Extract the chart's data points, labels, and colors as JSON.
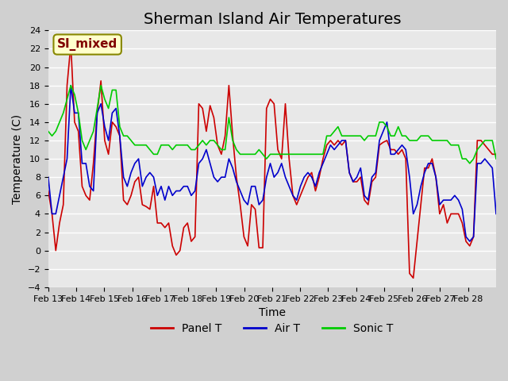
{
  "title": "Sherman Island Air Temperatures",
  "xlabel": "Time",
  "ylabel": "Temperature (C)",
  "ylim": [
    -4,
    24
  ],
  "yticks": [
    -4,
    -2,
    0,
    2,
    4,
    6,
    8,
    10,
    12,
    14,
    16,
    18,
    20,
    22,
    24
  ],
  "xlabels": [
    "Feb 13",
    "Feb 14",
    "Feb 15",
    "Feb 16",
    "Feb 17",
    "Feb 18",
    "Feb 19",
    "Feb 20",
    "Feb 21",
    "Feb 22",
    "Feb 23",
    "Feb 24",
    "Feb 25",
    "Feb 26",
    "Feb 27",
    "Feb 28"
  ],
  "n_days": 16,
  "bg_color": "#e8e8e8",
  "grid_color": "#ffffff",
  "panel_t_color": "#cc0000",
  "air_t_color": "#0000cc",
  "sonic_t_color": "#00cc00",
  "legend_label_color": "#800000",
  "annotation_text": "SI_mixed",
  "annotation_bg": "#ffffcc",
  "annotation_border": "#888800",
  "title_fontsize": 14,
  "axis_fontsize": 10,
  "tick_fontsize": 8,
  "legend_fontsize": 10,
  "linewidth": 1.2,
  "panel_t": [
    6.5,
    4.0,
    0.0,
    3.0,
    5.0,
    18.0,
    22.5,
    14.0,
    13.0,
    7.0,
    6.0,
    5.5,
    9.5,
    15.0,
    18.5,
    12.0,
    10.5,
    14.0,
    13.5,
    12.5,
    5.5,
    5.0,
    6.0,
    7.5,
    8.0,
    5.0,
    4.8,
    4.5,
    7.0,
    3.0,
    3.0,
    2.5,
    3.0,
    0.5,
    -0.5,
    0.0,
    2.5,
    3.0,
    1.0,
    1.5,
    16.0,
    15.5,
    13.0,
    15.8,
    14.5,
    11.5,
    10.5,
    12.5,
    18.0,
    12.5,
    8.0,
    5.0,
    1.5,
    0.5,
    5.0,
    4.5,
    0.3,
    0.3,
    15.5,
    16.5,
    16.0,
    11.0,
    10.0,
    16.0,
    10.0,
    6.0,
    5.0,
    6.0,
    7.0,
    8.0,
    8.5,
    6.5,
    8.0,
    10.0,
    11.5,
    12.0,
    11.5,
    12.0,
    11.5,
    12.0,
    8.5,
    7.5,
    7.5,
    8.0,
    5.5,
    5.0,
    7.5,
    8.0,
    11.5,
    11.8,
    12.0,
    11.0,
    11.0,
    10.5,
    11.0,
    10.0,
    -2.5,
    -3.0,
    1.0,
    5.0,
    9.0,
    9.0,
    10.0,
    8.0,
    4.0,
    5.0,
    3.0,
    4.0,
    4.0,
    4.0,
    3.0,
    1.0,
    0.5,
    1.5,
    12.0,
    12.0,
    11.5,
    11.0,
    10.5,
    10.5
  ],
  "air_t": [
    8.0,
    4.0,
    4.0,
    6.0,
    8.0,
    10.0,
    18.0,
    15.0,
    15.0,
    9.5,
    9.5,
    7.0,
    6.5,
    15.0,
    16.0,
    13.5,
    12.0,
    15.0,
    15.5,
    12.5,
    8.0,
    7.0,
    8.5,
    9.5,
    10.0,
    7.0,
    8.0,
    8.5,
    8.0,
    6.0,
    7.0,
    5.5,
    7.0,
    6.0,
    6.5,
    6.5,
    7.0,
    7.0,
    6.0,
    6.5,
    9.5,
    10.0,
    11.0,
    9.5,
    8.0,
    7.5,
    8.0,
    8.0,
    10.0,
    9.0,
    7.5,
    6.5,
    5.5,
    5.0,
    7.0,
    7.0,
    5.0,
    5.5,
    8.0,
    9.5,
    8.0,
    8.5,
    9.5,
    8.0,
    7.0,
    6.0,
    5.5,
    7.0,
    8.0,
    8.5,
    8.0,
    7.0,
    8.5,
    9.5,
    10.5,
    11.5,
    11.0,
    11.5,
    12.0,
    12.0,
    8.5,
    7.5,
    8.0,
    9.0,
    6.0,
    5.5,
    8.0,
    8.5,
    12.0,
    13.0,
    14.0,
    10.5,
    10.5,
    11.0,
    11.5,
    11.0,
    8.0,
    4.0,
    5.0,
    7.0,
    8.5,
    9.5,
    9.5,
    8.0,
    5.0,
    5.5,
    5.5,
    5.5,
    6.0,
    5.5,
    4.5,
    1.5,
    1.0,
    1.5,
    9.5,
    9.5,
    10.0,
    9.5,
    9.0,
    4.0
  ],
  "sonic_t": [
    13.0,
    12.5,
    13.0,
    14.0,
    15.0,
    16.5,
    18.0,
    17.0,
    15.0,
    12.0,
    11.0,
    12.0,
    13.0,
    15.5,
    18.0,
    16.5,
    15.5,
    17.5,
    17.5,
    13.5,
    12.5,
    12.5,
    12.0,
    11.5,
    11.5,
    11.5,
    11.5,
    11.0,
    10.5,
    10.5,
    11.5,
    11.5,
    11.5,
    11.0,
    11.5,
    11.5,
    11.5,
    11.5,
    11.0,
    11.0,
    11.5,
    12.0,
    11.5,
    12.0,
    12.0,
    11.5,
    11.0,
    11.0,
    14.5,
    12.0,
    11.0,
    10.5,
    10.5,
    10.5,
    10.5,
    10.5,
    11.0,
    10.5,
    10.0,
    10.5,
    10.5,
    10.5,
    10.5,
    10.5,
    10.5,
    10.5,
    10.5,
    10.5,
    10.5,
    10.5,
    10.5,
    10.5,
    10.5,
    10.5,
    12.5,
    12.5,
    13.0,
    13.5,
    12.5,
    12.5,
    12.5,
    12.5,
    12.5,
    12.5,
    12.0,
    12.5,
    12.5,
    12.5,
    14.0,
    14.0,
    13.5,
    12.5,
    12.5,
    13.5,
    12.5,
    12.5,
    12.0,
    12.0,
    12.0,
    12.5,
    12.5,
    12.5,
    12.0,
    12.0,
    12.0,
    12.0,
    12.0,
    11.5,
    11.5,
    11.5,
    10.0,
    10.0,
    9.5,
    10.0,
    11.0,
    11.5,
    12.0,
    12.0,
    12.0,
    10.0
  ]
}
